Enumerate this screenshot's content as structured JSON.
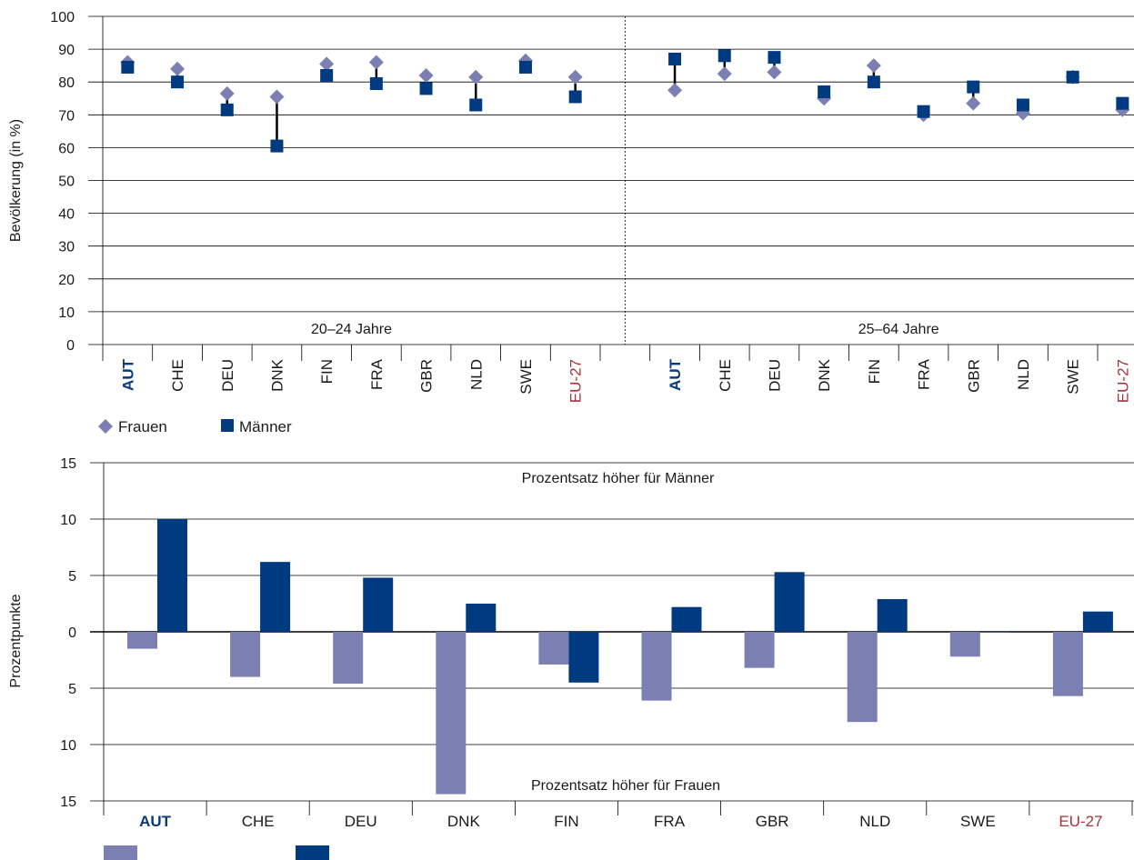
{
  "colors": {
    "frauen": "#7b7fb2",
    "maenner": "#003a80",
    "highlight": "#0d3a78",
    "eu": "#a5323a",
    "grid": "#000000",
    "text": "#1a1a1a"
  },
  "chart_data": [
    {
      "type": "scatter",
      "ylabel": "Bevölkerung (in %)",
      "ylim": [
        0,
        100
      ],
      "yticks": [
        0,
        10,
        20,
        30,
        40,
        50,
        60,
        70,
        80,
        90,
        100
      ],
      "grid": true,
      "legend_position": "bottom-left",
      "groups": [
        {
          "label": "20–24 Jahre",
          "categories": [
            "AUT",
            "CHE",
            "DEU",
            "DNK",
            "FIN",
            "FRA",
            "GBR",
            "NLD",
            "SWE",
            "EU-27"
          ]
        },
        {
          "label": "25–64 Jahre",
          "categories": [
            "AUT",
            "CHE",
            "DEU",
            "DNK",
            "FIN",
            "FRA",
            "GBR",
            "NLD",
            "SWE",
            "EU-27"
          ]
        }
      ],
      "series": [
        {
          "name": "Frauen",
          "marker": "diamond",
          "values": [
            [
              86,
              84,
              76.5,
              75.5,
              85.5,
              86,
              82,
              81.5,
              86.5,
              81.5
            ],
            [
              77.5,
              82.5,
              83,
              75,
              85,
              70,
              73.5,
              70.5,
              81.5,
              71.5
            ]
          ]
        },
        {
          "name": "Männer",
          "marker": "square",
          "values": [
            [
              84.5,
              80,
              71.5,
              60.5,
              82,
              79.5,
              78,
              73,
              84.5,
              75.5
            ],
            [
              87,
              88,
              87.5,
              77,
              80,
              71,
              78.5,
              73,
              81.5,
              73.5
            ]
          ]
        }
      ]
    },
    {
      "type": "bar",
      "ylabel": "Prozentpunkte",
      "ylim": [
        -15,
        15
      ],
      "yticks": [
        15,
        10,
        5,
        0,
        5,
        10,
        15
      ],
      "grid": true,
      "categories": [
        "AUT",
        "CHE",
        "DEU",
        "DNK",
        "FIN",
        "FRA",
        "GBR",
        "NLD",
        "SWE",
        "EU-27"
      ],
      "annotations": {
        "top": "Prozentsatz höher für Männer",
        "bottom": "Prozentsatz  höher für Frauen"
      },
      "series": [
        {
          "values": [
            -1.5,
            -4,
            -4.6,
            -14.4,
            -2.9,
            -6.1,
            -3.2,
            -8,
            -2.2,
            -5.7
          ]
        },
        {
          "values": [
            10,
            6.2,
            4.8,
            2.5,
            -4.5,
            2.2,
            5.3,
            2.9,
            0,
            1.8
          ]
        }
      ]
    }
  ]
}
